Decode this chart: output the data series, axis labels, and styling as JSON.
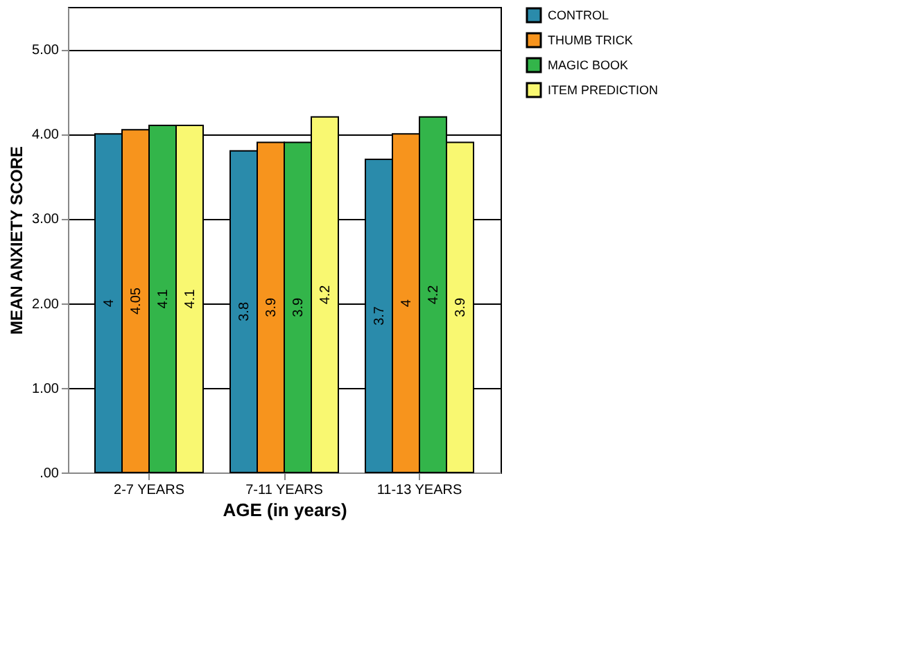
{
  "chart_data": {
    "type": "bar",
    "xlabel": "AGE (in years)",
    "ylabel": "MEAN ANXIETY SCORE",
    "categories": [
      "2-7 YEARS",
      "7-11 YEARS",
      "11-13 YEARS"
    ],
    "series": [
      {
        "name": "CONTROL",
        "color": "#2a8bab",
        "values": [
          4,
          3.8,
          3.7
        ]
      },
      {
        "name": "THUMB TRICK",
        "color": "#f7941d",
        "values": [
          4.05,
          3.9,
          4
        ]
      },
      {
        "name": "MAGIC BOOK",
        "color": "#33b54a",
        "values": [
          4.1,
          3.9,
          4.2
        ]
      },
      {
        "name": "ITEM PREDICTION",
        "color": "#f9f871",
        "values": [
          4.1,
          4.2,
          3.9
        ]
      }
    ],
    "ylim": [
      0,
      5.5
    ],
    "yticks": [
      {
        "value": 0,
        "label": ".00"
      },
      {
        "value": 1,
        "label": "1.00"
      },
      {
        "value": 2,
        "label": "2.00"
      },
      {
        "value": 3,
        "label": "3.00"
      },
      {
        "value": 4,
        "label": "4.00"
      },
      {
        "value": 5,
        "label": "5.00"
      }
    ],
    "grid": "y",
    "legend": "top right",
    "data_labels": true
  }
}
